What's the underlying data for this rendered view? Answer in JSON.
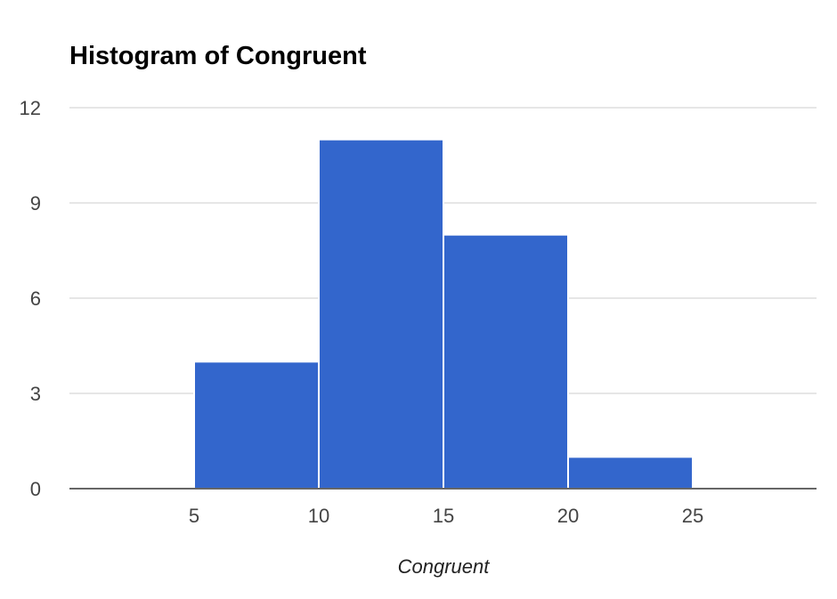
{
  "chart_data": {
    "type": "bar",
    "title": "Histogram of Congruent",
    "xlabel": "Congruent",
    "ylabel": "",
    "xlim": [
      0,
      30
    ],
    "ylim": [
      0,
      12
    ],
    "x_ticks": [
      "5",
      "10",
      "15",
      "20",
      "25"
    ],
    "y_ticks": [
      "0",
      "3",
      "6",
      "9",
      "12"
    ],
    "bins": [
      {
        "start": 5,
        "end": 10,
        "count": 4
      },
      {
        "start": 10,
        "end": 15,
        "count": 11
      },
      {
        "start": 15,
        "end": 20,
        "count": 8
      },
      {
        "start": 20,
        "end": 25,
        "count": 1
      }
    ],
    "grid": true,
    "legend": "none",
    "colors": {
      "bar": "#3366cc",
      "grid": "#cccccc",
      "baseline": "#333333"
    }
  }
}
